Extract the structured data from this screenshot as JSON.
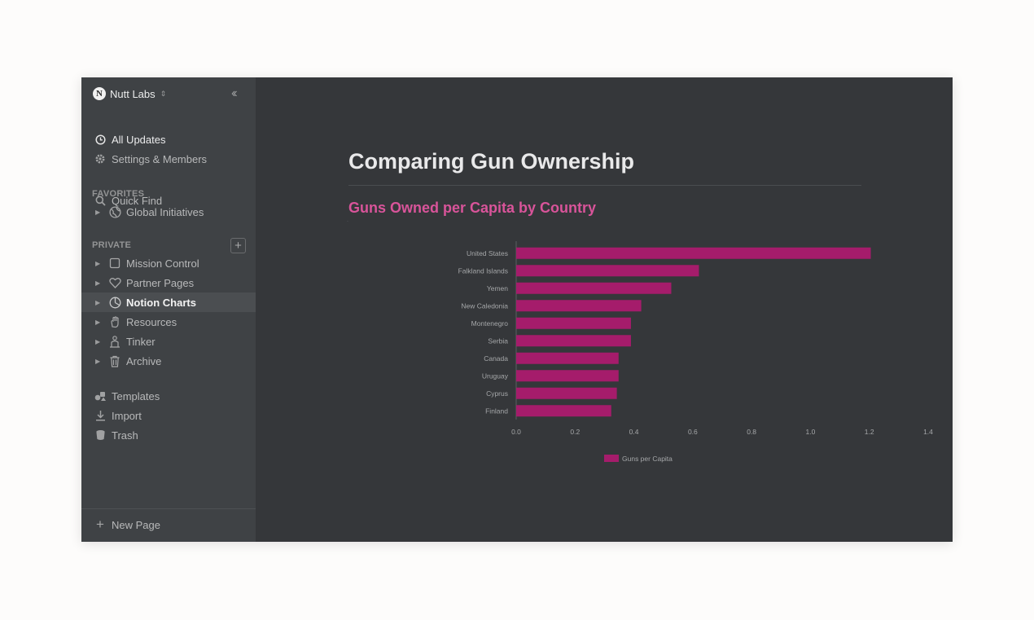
{
  "workspace": {
    "name": "Nutt Labs"
  },
  "sidebar": {
    "top_items": [
      {
        "label": "Quick Find",
        "icon": "search-icon"
      },
      {
        "label": "All Updates",
        "icon": "clock-icon"
      },
      {
        "label": "Settings & Members",
        "icon": "gear-icon"
      }
    ],
    "favorites_label": "FAVORITES",
    "favorites": [
      {
        "label": "Global Initiatives",
        "icon": "globe-icon"
      }
    ],
    "private_label": "PRIVATE",
    "private": [
      {
        "label": "Mission Control",
        "icon": "page-icon"
      },
      {
        "label": "Partner Pages",
        "icon": "heart-icon"
      },
      {
        "label": "Notion Charts",
        "icon": "chart-icon"
      },
      {
        "label": "Resources",
        "icon": "hand-icon"
      },
      {
        "label": "Tinker",
        "icon": "tinker-icon"
      },
      {
        "label": "Archive",
        "icon": "trash-can-icon"
      }
    ],
    "bottom_items": [
      {
        "label": "Templates",
        "icon": "templates-icon"
      },
      {
        "label": "Import",
        "icon": "download-icon"
      },
      {
        "label": "Trash",
        "icon": "bin-icon"
      }
    ],
    "new_page_label": "New Page"
  },
  "page": {
    "title": "Comparing Gun Ownership"
  },
  "colors": {
    "bar": "#a51c6b",
    "chart_title": "#d9549a"
  },
  "chart_data": {
    "type": "bar",
    "orientation": "horizontal",
    "title": "Guns Owned per Capita by Country",
    "categories": [
      "United States",
      "Falkland Islands",
      "Yemen",
      "New Caledonia",
      "Montenegro",
      "Serbia",
      "Canada",
      "Uruguay",
      "Cyprus",
      "Finland"
    ],
    "series": [
      {
        "name": "Guns per Capita",
        "values": [
          1.205,
          0.621,
          0.527,
          0.425,
          0.39,
          0.39,
          0.348,
          0.348,
          0.342,
          0.323
        ]
      }
    ],
    "xlim": [
      0,
      1.4
    ],
    "xticks": [
      "0.0",
      "0.2",
      "0.4",
      "0.6",
      "0.8",
      "1.0",
      "1.2",
      "1.4"
    ],
    "legend": "bottom-center"
  }
}
